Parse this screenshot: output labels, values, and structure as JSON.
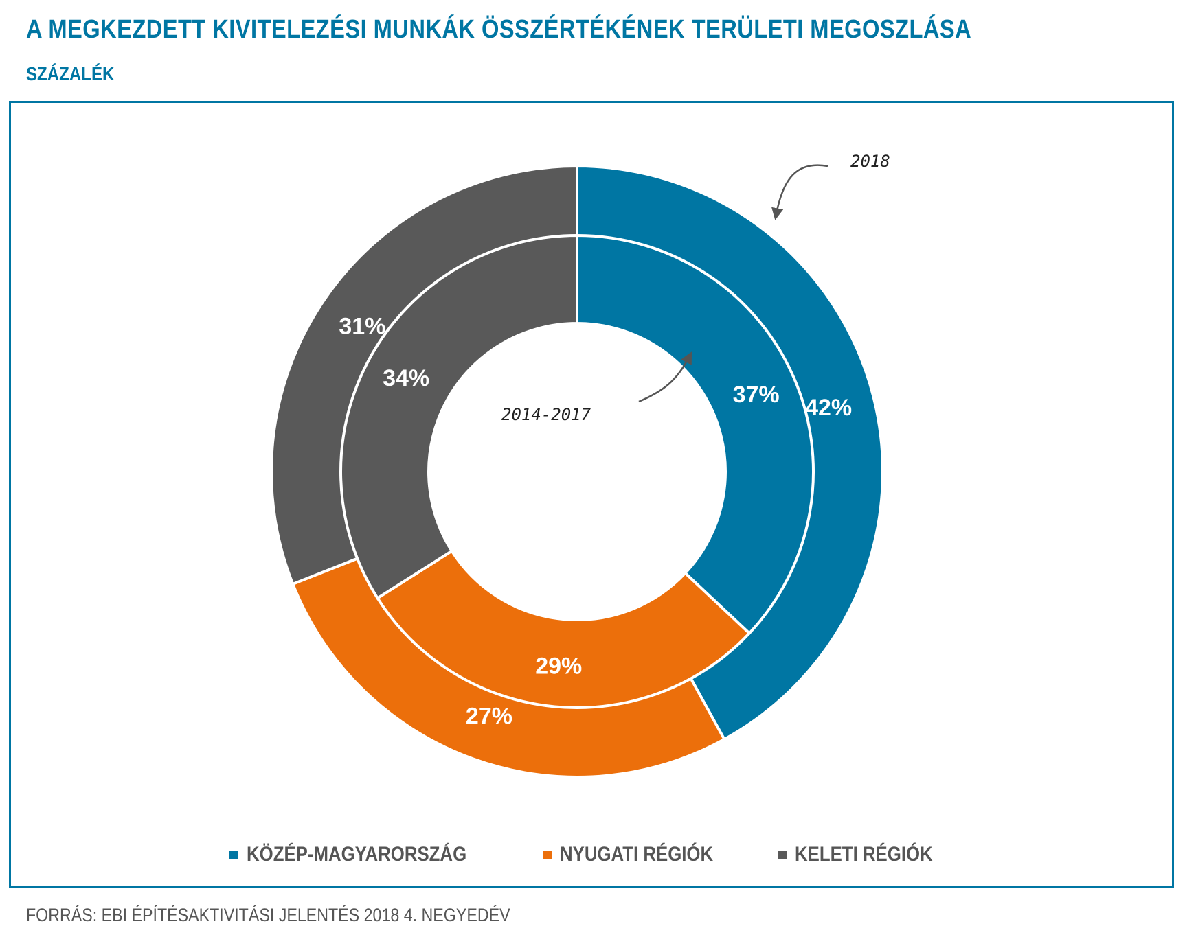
{
  "header": {
    "title": "A MEGKEZDETT KIVITELEZÉSI MUNKÁK ÖSSZÉRTÉKÉNEK TERÜLETI MEGOSZLÁSA",
    "subtitle": "SZÁZALÉK"
  },
  "chart_data": {
    "type": "pie",
    "variant": "nested-donut",
    "categories": [
      "KÖZÉP-MAGYARORSZÁG",
      "NYUGATI RÉGIÓK",
      "KELETI RÉGIÓK"
    ],
    "series": [
      {
        "name": "2018",
        "ring": "outer",
        "values": [
          42,
          27,
          31
        ],
        "labels": [
          "42%",
          "27%",
          "31%"
        ]
      },
      {
        "name": "2014-2017",
        "ring": "inner",
        "values": [
          37,
          29,
          34
        ],
        "labels": [
          "37%",
          "29%",
          "34%"
        ]
      }
    ],
    "colors": [
      "#0076a3",
      "#ec6f0b",
      "#595959"
    ],
    "legend_position": "bottom",
    "annotations": {
      "outer": "2018",
      "inner": "2014-2017"
    }
  },
  "legend": {
    "items": [
      {
        "label": "KÖZÉP-MAGYARORSZÁG",
        "color": "#0076a3"
      },
      {
        "label": "NYUGATI RÉGIÓK",
        "color": "#ec6f0b"
      },
      {
        "label": "KELETI RÉGIÓK",
        "color": "#595959"
      }
    ]
  },
  "footer": {
    "source": "FORRÁS: EBI ÉPÍTÉSAKTIVITÁSI JELENTÉS 2018 4. NEGYEDÉV"
  }
}
